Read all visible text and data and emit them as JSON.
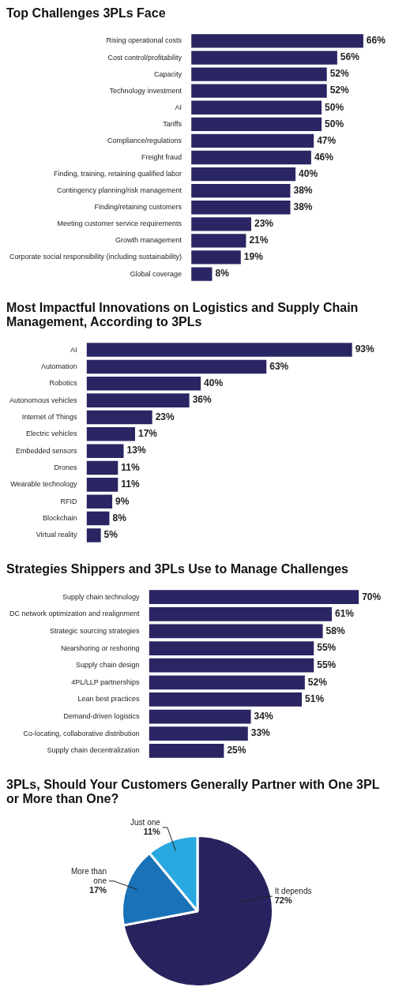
{
  "chart_data": [
    {
      "type": "bar",
      "orientation": "horizontal",
      "title": "Top Challenges 3PLs Face",
      "color": "#2a2663",
      "categories": [
        "Rising operational costs",
        "Cost control/profitability",
        "Capacity",
        "Technology investment",
        "AI",
        "Tariffs",
        "Compliance/regulations",
        "Freight fraud",
        "Finding, training, retaining qualified labor",
        "Contingency planning/risk management",
        "Finding/retaining customers",
        "Meeting customer service requirements",
        "Growth management",
        "Corporate social responsibility (including sustainability)",
        "Global coverage"
      ],
      "values": [
        66,
        56,
        52,
        52,
        50,
        50,
        47,
        46,
        40,
        38,
        38,
        23,
        21,
        19,
        8
      ],
      "value_labels": [
        "66%",
        "56%",
        "52%",
        "52%",
        "50%",
        "50%",
        "47%",
        "46%",
        "40%",
        "38%",
        "38%",
        "23%",
        "21%",
        "19%",
        "8%"
      ]
    },
    {
      "type": "bar",
      "orientation": "horizontal",
      "title": "Most Impactful Innovations on Logistics and Supply Chain Management, According to 3PLs",
      "color": "#2a2663",
      "categories": [
        "AI",
        "Automation",
        "Robotics",
        "Autonomous vehicles",
        "Internet of Things",
        "Electric vehicles",
        "Embedded sensors",
        "Drones",
        "Wearable technology",
        "RFID",
        "Blockchain",
        "Virtual reality"
      ],
      "values": [
        93,
        63,
        40,
        36,
        23,
        17,
        13,
        11,
        11,
        9,
        8,
        5
      ],
      "value_labels": [
        "93%",
        "63%",
        "40%",
        "36%",
        "23%",
        "17%",
        "13%",
        "11%",
        "11%",
        "9%",
        "8%",
        "5%"
      ]
    },
    {
      "type": "bar",
      "orientation": "horizontal",
      "title": "Strategies Shippers and 3PLs Use to Manage Challenges",
      "color": "#2a2663",
      "categories": [
        "Supply chain technology",
        "DC network optimization and realignment",
        "Strategic sourcing strategies",
        "Nearshoring or reshoring",
        "Supply chain design",
        "4PL/LLP partnerships",
        "Lean best practices",
        "Demand-driven logistics",
        "Co-locating, collaborative distribution",
        "Supply chain decentralization"
      ],
      "values": [
        70,
        61,
        58,
        55,
        55,
        52,
        51,
        34,
        33,
        25
      ],
      "value_labels": [
        "70%",
        "61%",
        "58%",
        "55%",
        "55%",
        "52%",
        "51%",
        "34%",
        "33%",
        "25%"
      ]
    },
    {
      "type": "pie",
      "title": "3PLs, Should Your Customers Generally Partner with One 3PL or More than One?",
      "categories": [
        "It depends",
        "More than one",
        "Just one"
      ],
      "values": [
        72,
        17,
        11
      ],
      "colors": [
        "#27235e",
        "#1a72b8",
        "#29a9e0"
      ],
      "value_labels": [
        "72%",
        "17%",
        "11%"
      ]
    }
  ]
}
